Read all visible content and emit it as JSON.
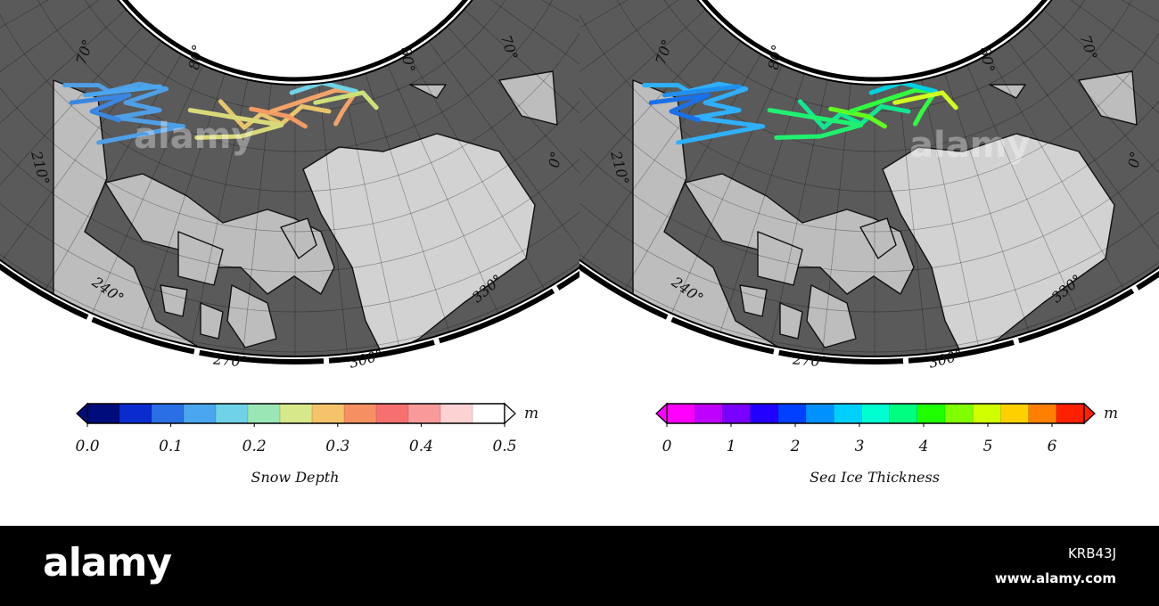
{
  "maps": [
    {
      "id": "snow-depth",
      "lat_labels": [
        "70",
        "80",
        "80",
        "70"
      ],
      "lon_labels": [
        "210",
        "240",
        "270",
        "300",
        "330",
        "0"
      ],
      "colorbar": {
        "title": "Snow Depth",
        "unit": "m",
        "ticks": [
          "0.0",
          "0.1",
          "0.2",
          "0.3",
          "0.4",
          "0.5"
        ],
        "colors": [
          "#000c7a",
          "#0a2ccf",
          "#2a6fe6",
          "#4aa6ee",
          "#6fd2e6",
          "#9be6b5",
          "#d6e88a",
          "#f4c36a",
          "#f69062",
          "#f77070",
          "#f99a9a",
          "#fcd2d2",
          "#ffffff"
        ]
      },
      "tracks": [
        {
          "color": "#4f9fe6",
          "points": [
            [
              0.02,
              0.04
            ],
            [
              0.12,
              0.04
            ],
            [
              0.15,
              0.09
            ],
            [
              0.24,
              0.03
            ],
            [
              0.32,
              0.07
            ],
            [
              0.2,
              0.18
            ],
            [
              0.3,
              0.24
            ],
            [
              0.17,
              0.3
            ],
            [
              0.37,
              0.37
            ],
            [
              0.12,
              0.5
            ]
          ]
        },
        {
          "color": "#4aa6ee",
          "points": [
            [
              0.08,
              0.12
            ],
            [
              0.3,
              0.05
            ]
          ]
        },
        {
          "color": "#3a86e0",
          "points": [
            [
              0.04,
              0.18
            ],
            [
              0.21,
              0.12
            ],
            [
              0.1,
              0.25
            ],
            [
              0.18,
              0.32
            ]
          ]
        },
        {
          "color": "#e7c56a",
          "points": [
            [
              0.48,
              0.17
            ],
            [
              0.55,
              0.38
            ],
            [
              0.6,
              0.27
            ],
            [
              0.66,
              0.35
            ],
            [
              0.72,
              0.21
            ],
            [
              0.8,
              0.25
            ]
          ]
        },
        {
          "color": "#f29a62",
          "points": [
            [
              0.57,
              0.23
            ],
            [
              0.68,
              0.29
            ],
            [
              0.73,
              0.37
            ]
          ]
        },
        {
          "color": "#d9d97a",
          "points": [
            [
              0.39,
              0.24
            ],
            [
              0.66,
              0.36
            ],
            [
              0.54,
              0.45
            ],
            [
              0.41,
              0.46
            ]
          ]
        },
        {
          "color": "#f3a36a",
          "points": [
            [
              0.63,
              0.25
            ],
            [
              0.82,
              0.08
            ],
            [
              0.88,
              0.09
            ],
            [
              0.84,
              0.25
            ],
            [
              0.82,
              0.35
            ]
          ]
        },
        {
          "color": "#6fd2e6",
          "points": [
            [
              0.69,
              0.1
            ],
            [
              0.78,
              0.02
            ],
            [
              0.88,
              0.09
            ]
          ]
        },
        {
          "color": "#cce07a",
          "points": [
            [
              0.76,
              0.18
            ],
            [
              0.9,
              0.1
            ],
            [
              0.94,
              0.22
            ]
          ]
        }
      ]
    },
    {
      "id": "sea-ice-thickness",
      "lat_labels": [
        "70",
        "80",
        "80",
        "70"
      ],
      "lon_labels": [
        "210",
        "240",
        "270",
        "300",
        "330",
        "0"
      ],
      "colorbar": {
        "title": "Sea Ice Thickness",
        "unit": "m",
        "ticks": [
          "0",
          "1",
          "2",
          "3",
          "4",
          "5",
          "6"
        ],
        "colors": [
          "#ff00ff",
          "#c000ff",
          "#7a00ff",
          "#2200ff",
          "#0040ff",
          "#0090ff",
          "#00d0ff",
          "#00ffd0",
          "#00ff80",
          "#20ff00",
          "#80ff00",
          "#d0ff00",
          "#ffd000",
          "#ff8000",
          "#ff2000"
        ]
      },
      "tracks": [
        {
          "color": "#2fb0ff",
          "points": [
            [
              0.02,
              0.04
            ],
            [
              0.12,
              0.04
            ],
            [
              0.15,
              0.09
            ],
            [
              0.24,
              0.03
            ],
            [
              0.32,
              0.07
            ],
            [
              0.2,
              0.18
            ],
            [
              0.3,
              0.24
            ],
            [
              0.17,
              0.3
            ],
            [
              0.37,
              0.37
            ],
            [
              0.12,
              0.5
            ]
          ]
        },
        {
          "color": "#1f90f0",
          "points": [
            [
              0.08,
              0.12
            ],
            [
              0.3,
              0.05
            ]
          ]
        },
        {
          "color": "#1a70e8",
          "points": [
            [
              0.04,
              0.18
            ],
            [
              0.21,
              0.12
            ],
            [
              0.1,
              0.25
            ],
            [
              0.18,
              0.32
            ]
          ]
        },
        {
          "color": "#10e890",
          "points": [
            [
              0.48,
              0.17
            ],
            [
              0.55,
              0.38
            ],
            [
              0.6,
              0.27
            ],
            [
              0.66,
              0.35
            ],
            [
              0.72,
              0.21
            ],
            [
              0.8,
              0.25
            ]
          ]
        },
        {
          "color": "#60ff20",
          "points": [
            [
              0.57,
              0.23
            ],
            [
              0.68,
              0.29
            ],
            [
              0.73,
              0.37
            ]
          ]
        },
        {
          "color": "#20f070",
          "points": [
            [
              0.39,
              0.24
            ],
            [
              0.66,
              0.36
            ],
            [
              0.54,
              0.45
            ],
            [
              0.41,
              0.46
            ]
          ]
        },
        {
          "color": "#30ff40",
          "points": [
            [
              0.63,
              0.25
            ],
            [
              0.82,
              0.08
            ],
            [
              0.88,
              0.09
            ],
            [
              0.84,
              0.25
            ],
            [
              0.82,
              0.35
            ]
          ]
        },
        {
          "color": "#00d0e0",
          "points": [
            [
              0.69,
              0.1
            ],
            [
              0.78,
              0.02
            ],
            [
              0.88,
              0.09
            ]
          ]
        },
        {
          "color": "#d0ff20",
          "points": [
            [
              0.76,
              0.18
            ],
            [
              0.9,
              0.1
            ],
            [
              0.94,
              0.22
            ]
          ]
        }
      ]
    }
  ],
  "watermark": "alamy",
  "footer": {
    "brand": "alamy",
    "image_id": "KRB43J",
    "url": "www.alamy.com"
  }
}
